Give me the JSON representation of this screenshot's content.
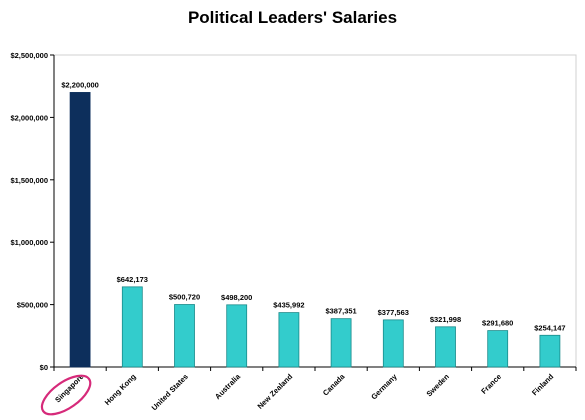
{
  "chart_data": {
    "type": "bar",
    "title": "Political Leaders' Salaries",
    "xlabel": "",
    "ylabel": "",
    "ylim": [
      0,
      2500000
    ],
    "yticks": [
      0,
      500000,
      1000000,
      1500000,
      2000000,
      2500000
    ],
    "ytick_labels": [
      "$0",
      "$500,000",
      "$1,000,000",
      "$1,500,000",
      "$2,000,000",
      "$2,500,000"
    ],
    "grid": false,
    "categories": [
      "Singapore",
      "Hong Kong",
      "United States",
      "Australia",
      "New Zealand",
      "Canada",
      "Germany",
      "Sweden",
      "France",
      "Finland"
    ],
    "values": [
      2200000,
      642173,
      500720,
      498200,
      435992,
      387351,
      377563,
      321998,
      291680,
      254147
    ],
    "data_labels": [
      "$2,200,000",
      "$642,173",
      "$500,720",
      "$498,200",
      "$435,992",
      "$387,351",
      "$377,563",
      "$321,998",
      "$291,680",
      "$254,147"
    ],
    "colors": {
      "highlight_bar": "#0d2f5c",
      "bar": "#33cccc",
      "bar_edge": "#1a8a8a",
      "circle": "#d62a7a"
    },
    "highlighted_category": "Singapore"
  }
}
